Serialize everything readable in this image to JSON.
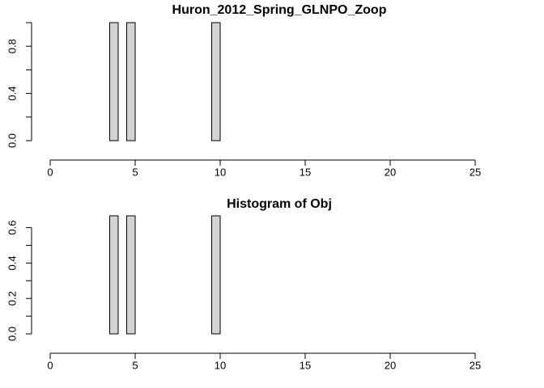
{
  "chart_data": [
    {
      "type": "histogram",
      "title": "Huron_2012_Spring_GLNPO_Zoop",
      "bins": [
        0,
        0.5,
        1,
        1.5,
        2,
        2.5,
        3,
        3.5,
        4,
        4.5,
        5,
        5.5,
        6,
        6.5,
        7,
        7.5,
        8,
        8.5,
        9,
        9.5,
        10,
        10.5,
        11,
        11.5,
        12,
        12.5,
        13,
        13.5,
        14,
        14.5,
        15,
        15.5,
        16,
        16.5,
        17,
        17.5,
        18,
        18.5,
        19,
        19.5,
        20,
        20.5,
        21,
        21.5,
        22,
        22.5,
        23,
        23.5,
        24,
        24.5,
        25,
        25.5,
        26,
        26.5,
        27
      ],
      "values": [
        0,
        0,
        0,
        0,
        0,
        0,
        0,
        1,
        0,
        1,
        0,
        0,
        0,
        0,
        0,
        0,
        0,
        0,
        0,
        1,
        0,
        0,
        0,
        0,
        0,
        0,
        0,
        0,
        0,
        0,
        0,
        0,
        0,
        0,
        0,
        0,
        0,
        0,
        0,
        0,
        0,
        0,
        0,
        0,
        0,
        0,
        0,
        0,
        0,
        0,
        0,
        0,
        0,
        0
      ],
      "color": "#d3d3d3",
      "xlim": [
        0,
        27
      ],
      "xticks": [
        0,
        5,
        10,
        15,
        20,
        25
      ],
      "ylim": [
        0,
        1
      ],
      "yticks": [
        {
          "value": 0,
          "label": "0.0"
        },
        {
          "value": 0.2,
          "label": null
        },
        {
          "value": 0.4,
          "label": "0.4"
        },
        {
          "value": 0.6,
          "label": null
        },
        {
          "value": 0.8,
          "label": "0.8"
        },
        {
          "value": 1,
          "label": null
        }
      ]
    },
    {
      "type": "histogram",
      "title": "Histogram of Obj",
      "bins": [
        0,
        0.5,
        1,
        1.5,
        2,
        2.5,
        3,
        3.5,
        4,
        4.5,
        5,
        5.5,
        6,
        6.5,
        7,
        7.5,
        8,
        8.5,
        9,
        9.5,
        10,
        10.5,
        11,
        11.5,
        12,
        12.5,
        13,
        13.5,
        14,
        14.5,
        15,
        15.5,
        16,
        16.5,
        17,
        17.5,
        18,
        18.5,
        19,
        19.5,
        20,
        20.5,
        21,
        21.5,
        22,
        22.5,
        23,
        23.5,
        24,
        24.5,
        25,
        25.5,
        26,
        26.5,
        27
      ],
      "values": [
        0,
        0,
        0,
        0,
        0,
        0,
        0,
        0.6667,
        0,
        0.6667,
        0,
        0,
        0,
        0,
        0,
        0,
        0,
        0,
        0,
        0.6667,
        0,
        0,
        0,
        0,
        0,
        0,
        0,
        0,
        0,
        0,
        0,
        0,
        0,
        0,
        0,
        0,
        0,
        0,
        0,
        0,
        0,
        0,
        0,
        0,
        0,
        0,
        0,
        0,
        0,
        0,
        0,
        0,
        0,
        0
      ],
      "color": "#d3d3d3",
      "xlim": [
        0,
        27
      ],
      "xticks": [
        0,
        5,
        10,
        15,
        20,
        25
      ],
      "ylim": [
        0,
        0.6667
      ],
      "yticks": [
        {
          "value": 0,
          "label": "0.0"
        },
        {
          "value": 0.1,
          "label": null
        },
        {
          "value": 0.2,
          "label": "0.2"
        },
        {
          "value": 0.3,
          "label": null
        },
        {
          "value": 0.4,
          "label": "0.4"
        },
        {
          "value": 0.5,
          "label": null
        },
        {
          "value": 0.6,
          "label": "0.6"
        }
      ]
    }
  ]
}
